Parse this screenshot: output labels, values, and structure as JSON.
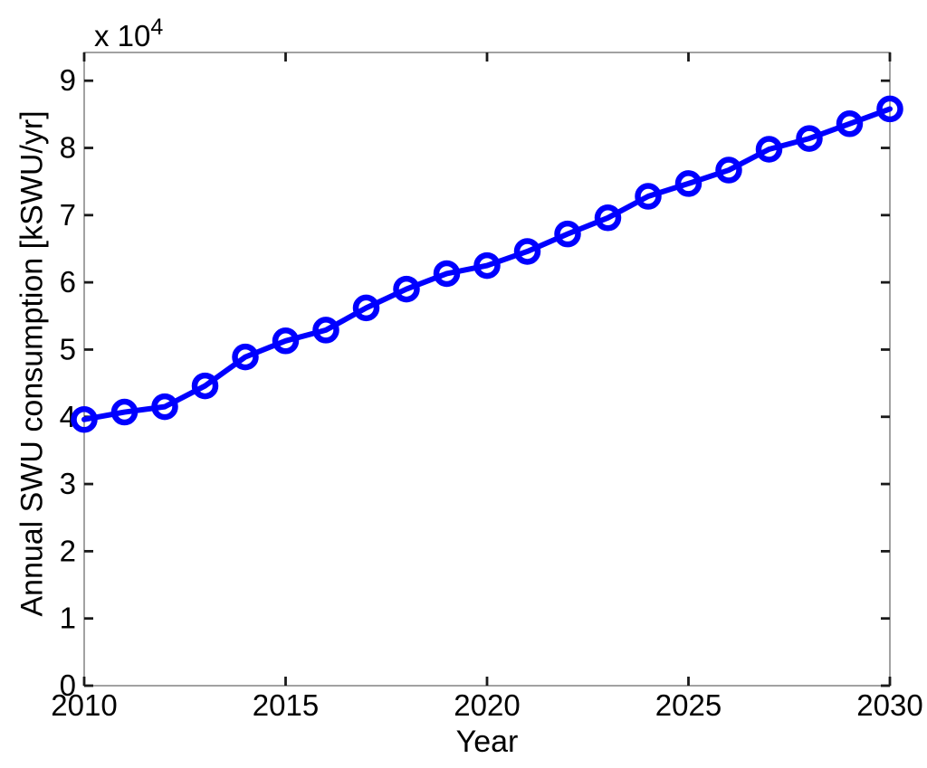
{
  "figure": {
    "background": "#FFFFFF",
    "scale_prefix": "x 10",
    "scale_exponent": "4"
  },
  "chart_data": {
    "type": "line",
    "title": "",
    "xlabel": "Year",
    "ylabel": "Annual SWU consumption [kSWU/yr]",
    "y_axis_scale_factor": 10000,
    "y_axis_scale_label": "x 10^4",
    "grid": false,
    "legend": "none",
    "line_color": "#0000FF",
    "marker": "open-circle",
    "xlim": [
      2010,
      2030
    ],
    "ylim": [
      0,
      94200
    ],
    "x_ticks": [
      2010,
      2015,
      2020,
      2025,
      2030
    ],
    "y_ticks": [
      0,
      10000,
      20000,
      30000,
      40000,
      50000,
      60000,
      70000,
      80000,
      90000
    ],
    "y_tick_labels": [
      "0",
      "1",
      "2",
      "3",
      "4",
      "5",
      "6",
      "7",
      "8",
      "9"
    ],
    "series": [
      {
        "name": "Annual SWU consumption",
        "x": [
          2010,
          2011,
          2012,
          2013,
          2014,
          2015,
          2016,
          2017,
          2018,
          2019,
          2020,
          2021,
          2022,
          2023,
          2024,
          2025,
          2026,
          2027,
          2028,
          2029,
          2030
        ],
        "y": [
          39600,
          40700,
          41500,
          44600,
          48900,
          51300,
          52900,
          56200,
          59000,
          61300,
          62500,
          64600,
          67200,
          69600,
          72800,
          74700,
          76700,
          79800,
          81400,
          83600,
          85800
        ]
      }
    ]
  }
}
